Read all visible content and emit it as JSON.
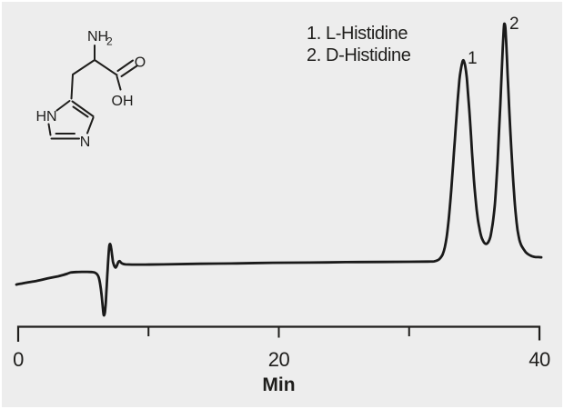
{
  "figure": {
    "background_color": "#ededed",
    "ink_color": "#1f1e1c"
  },
  "legend": {
    "item1": "1. L-Histidine",
    "item2": "2. D-Histidine"
  },
  "peak_labels": {
    "p1": "1",
    "p2": "2"
  },
  "molecule": {
    "description": "histidine 2D skeletal structure",
    "atom_labels": {
      "amine": "NH",
      "amine_sub": "2",
      "carbonyl_o": "O",
      "hydroxyl": "OH",
      "ring_nh": "HN",
      "ring_n": "N"
    }
  },
  "axis": {
    "label": "Min",
    "tick_labels": {
      "t0": "0",
      "t20": "20",
      "t40": "40"
    }
  },
  "chart_data": {
    "type": "line",
    "title": "",
    "xlabel": "Min",
    "ylabel": "",
    "xlim": [
      0,
      40
    ],
    "x_major_ticks": [
      0,
      20,
      40
    ],
    "x_minor_ticks": [
      10,
      30
    ],
    "grid": false,
    "legend_position": "upper-center-left of peaks",
    "legend_entries": [
      "1. L-Histidine",
      "2. D-Histidine"
    ],
    "y_units": "relative detector response (baseline = 0, peak 1 apex = 1)",
    "peaks": [
      {
        "label": "1",
        "compound": "L-Histidine",
        "retention_time_min": 34.1,
        "relative_height": 1.0
      },
      {
        "label": "2",
        "compound": "D-Histidine",
        "retention_time_min": 37.3,
        "relative_height": 1.18
      }
    ],
    "baseline_events": [
      {
        "description": "injection / solvent front disturbance: sharp negative dip followed by small positive spike",
        "time_min_range": [
          6.0,
          7.7
        ],
        "dip_min_rel": -0.26,
        "spike_max_rel": 0.09
      }
    ],
    "trace": [
      [
        -0.14,
        -0.113
      ],
      [
        0.56,
        -0.104
      ],
      [
        1.4,
        -0.095
      ],
      [
        2.23,
        -0.083
      ],
      [
        3.07,
        -0.072
      ],
      [
        3.49,
        -0.065
      ],
      [
        3.77,
        -0.059
      ],
      [
        4.05,
        -0.053
      ],
      [
        4.47,
        -0.051
      ],
      [
        4.89,
        -0.05
      ],
      [
        5.31,
        -0.05
      ],
      [
        5.65,
        -0.051
      ],
      [
        5.86,
        -0.053
      ],
      [
        6.04,
        -0.061
      ],
      [
        6.18,
        -0.077
      ],
      [
        6.28,
        -0.108
      ],
      [
        6.39,
        -0.158
      ],
      [
        6.48,
        -0.216
      ],
      [
        6.56,
        -0.264
      ],
      [
        6.65,
        -0.252
      ],
      [
        6.72,
        -0.203
      ],
      [
        6.79,
        -0.122
      ],
      [
        6.86,
        -0.041
      ],
      [
        6.93,
        0.032
      ],
      [
        6.99,
        0.077
      ],
      [
        7.06,
        0.088
      ],
      [
        7.13,
        0.07
      ],
      [
        7.2,
        0.036
      ],
      [
        7.27,
        0.002
      ],
      [
        7.36,
        -0.018
      ],
      [
        7.47,
        -0.029
      ],
      [
        7.57,
        -0.02
      ],
      [
        7.68,
        -0.002
      ],
      [
        7.78,
        0.003
      ],
      [
        7.89,
        -0.004
      ],
      [
        8.03,
        -0.01
      ],
      [
        8.24,
        -0.013
      ],
      [
        8.73,
        -0.014
      ],
      [
        9.77,
        -0.014
      ],
      [
        11.17,
        -0.013
      ],
      [
        13.96,
        -0.01
      ],
      [
        16.75,
        -0.008
      ],
      [
        19.55,
        -0.005
      ],
      [
        22.34,
        -0.004
      ],
      [
        25.13,
        -0.002
      ],
      [
        27.92,
        -0.001
      ],
      [
        30.02,
        0
      ],
      [
        31.41,
        0.001
      ],
      [
        31.9,
        0.002
      ],
      [
        32.18,
        0.007
      ],
      [
        32.39,
        0.018
      ],
      [
        32.57,
        0.036
      ],
      [
        32.74,
        0.072
      ],
      [
        32.88,
        0.122
      ],
      [
        33.02,
        0.198
      ],
      [
        33.16,
        0.297
      ],
      [
        33.3,
        0.414
      ],
      [
        33.44,
        0.541
      ],
      [
        33.58,
        0.667
      ],
      [
        33.72,
        0.793
      ],
      [
        33.86,
        0.901
      ],
      [
        33.96,
        0.95
      ],
      [
        34.07,
        0.986
      ],
      [
        34.14,
        0.998
      ],
      [
        34.21,
        0.993
      ],
      [
        34.31,
        0.968
      ],
      [
        34.42,
        0.914
      ],
      [
        34.52,
        0.833
      ],
      [
        34.63,
        0.739
      ],
      [
        34.73,
        0.644
      ],
      [
        34.83,
        0.541
      ],
      [
        34.97,
        0.41
      ],
      [
        35.11,
        0.302
      ],
      [
        35.25,
        0.221
      ],
      [
        35.39,
        0.167
      ],
      [
        35.53,
        0.126
      ],
      [
        35.67,
        0.104
      ],
      [
        35.81,
        0.091
      ],
      [
        35.95,
        0.089
      ],
      [
        36.09,
        0.099
      ],
      [
        36.23,
        0.122
      ],
      [
        36.37,
        0.171
      ],
      [
        36.47,
        0.216
      ],
      [
        36.58,
        0.284
      ],
      [
        36.68,
        0.374
      ],
      [
        36.79,
        0.495
      ],
      [
        36.89,
        0.631
      ],
      [
        37,
        0.779
      ],
      [
        37.1,
        0.937
      ],
      [
        37.19,
        1.063
      ],
      [
        37.26,
        1.149
      ],
      [
        37.3,
        1.179
      ],
      [
        37.37,
        1.169
      ],
      [
        37.42,
        1.126
      ],
      [
        37.49,
        1.036
      ],
      [
        37.56,
        0.928
      ],
      [
        37.66,
        0.784
      ],
      [
        37.77,
        0.64
      ],
      [
        37.91,
        0.482
      ],
      [
        38.05,
        0.342
      ],
      [
        38.19,
        0.23
      ],
      [
        38.32,
        0.158
      ],
      [
        38.46,
        0.11
      ],
      [
        38.6,
        0.083
      ],
      [
        38.78,
        0.063
      ],
      [
        38.95,
        0.047
      ],
      [
        39.16,
        0.036
      ],
      [
        39.41,
        0.028
      ],
      [
        39.65,
        0.024
      ],
      [
        39.93,
        0.023
      ],
      [
        40.14,
        0.022
      ]
    ]
  }
}
